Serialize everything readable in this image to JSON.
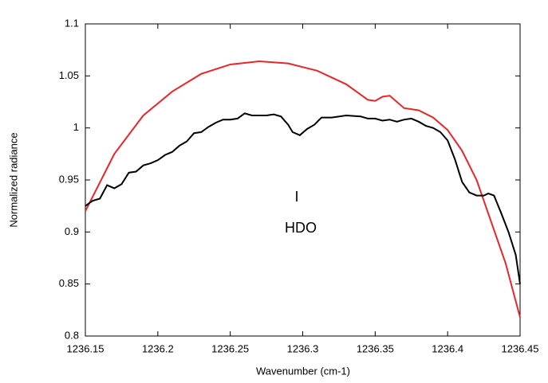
{
  "chart_data": {
    "type": "line",
    "x_label": "Wavenumber (cm-1)",
    "y_label": "Normalized radiance",
    "annotations": [
      "I",
      "HDO"
    ],
    "xlim": [
      1236.15,
      1236.45
    ],
    "xticks": [
      1236.15,
      1236.2,
      1236.25,
      1236.3,
      1236.35,
      1236.4,
      1236.45
    ],
    "ylim": [
      0.8,
      1.1
    ],
    "yticks": [
      0.8,
      0.85,
      0.9,
      0.95,
      1,
      1.05,
      1.1
    ],
    "grid": false,
    "series": [
      {
        "color": "#e8262a",
        "x": [
          1236.15,
          1236.17,
          1236.19,
          1236.21,
          1236.23,
          1236.25,
          1236.27,
          1236.29,
          1236.31,
          1236.33,
          1236.345,
          1236.35,
          1236.355,
          1236.36,
          1236.365,
          1236.37,
          1236.38,
          1236.39,
          1236.4,
          1236.41,
          1236.42,
          1236.43,
          1236.44,
          1236.45
        ],
        "values": [
          0.92,
          0.975,
          1.012,
          1.035,
          1.052,
          1.061,
          1.064,
          1.062,
          1.055,
          1.042,
          1.027,
          1.026,
          1.03,
          1.031,
          1.025,
          1.019,
          1.017,
          1.01,
          0.998,
          0.978,
          0.95,
          0.91,
          0.87,
          0.818
        ]
      },
      {
        "color": "#000000",
        "x": [
          1236.15,
          1236.155,
          1236.16,
          1236.165,
          1236.17,
          1236.175,
          1236.18,
          1236.185,
          1236.19,
          1236.195,
          1236.2,
          1236.205,
          1236.21,
          1236.215,
          1236.22,
          1236.225,
          1236.23,
          1236.235,
          1236.24,
          1236.245,
          1236.25,
          1236.255,
          1236.26,
          1236.265,
          1236.27,
          1236.275,
          1236.28,
          1236.285,
          1236.29,
          1236.293,
          1236.298,
          1236.303,
          1236.308,
          1236.313,
          1236.32,
          1236.33,
          1236.34,
          1236.345,
          1236.35,
          1236.355,
          1236.36,
          1236.365,
          1236.37,
          1236.375,
          1236.38,
          1236.385,
          1236.39,
          1236.395,
          1236.4,
          1236.405,
          1236.41,
          1236.415,
          1236.42,
          1236.425,
          1236.428,
          1236.432,
          1236.437,
          1236.442,
          1236.447,
          1236.45
        ],
        "values": [
          0.925,
          0.93,
          0.932,
          0.945,
          0.942,
          0.946,
          0.957,
          0.958,
          0.964,
          0.966,
          0.969,
          0.974,
          0.977,
          0.983,
          0.987,
          0.995,
          0.996,
          1.001,
          1.005,
          1.008,
          1.008,
          1.009,
          1.014,
          1.012,
          1.012,
          1.012,
          1.013,
          1.011,
          1.003,
          0.996,
          0.993,
          0.999,
          1.003,
          1.01,
          1.01,
          1.012,
          1.011,
          1.009,
          1.009,
          1.007,
          1.008,
          1.006,
          1.008,
          1.009,
          1.006,
          1.002,
          1.0,
          0.996,
          0.988,
          0.97,
          0.948,
          0.938,
          0.935,
          0.935,
          0.937,
          0.935,
          0.918,
          0.9,
          0.878,
          0.85
        ]
      }
    ]
  }
}
